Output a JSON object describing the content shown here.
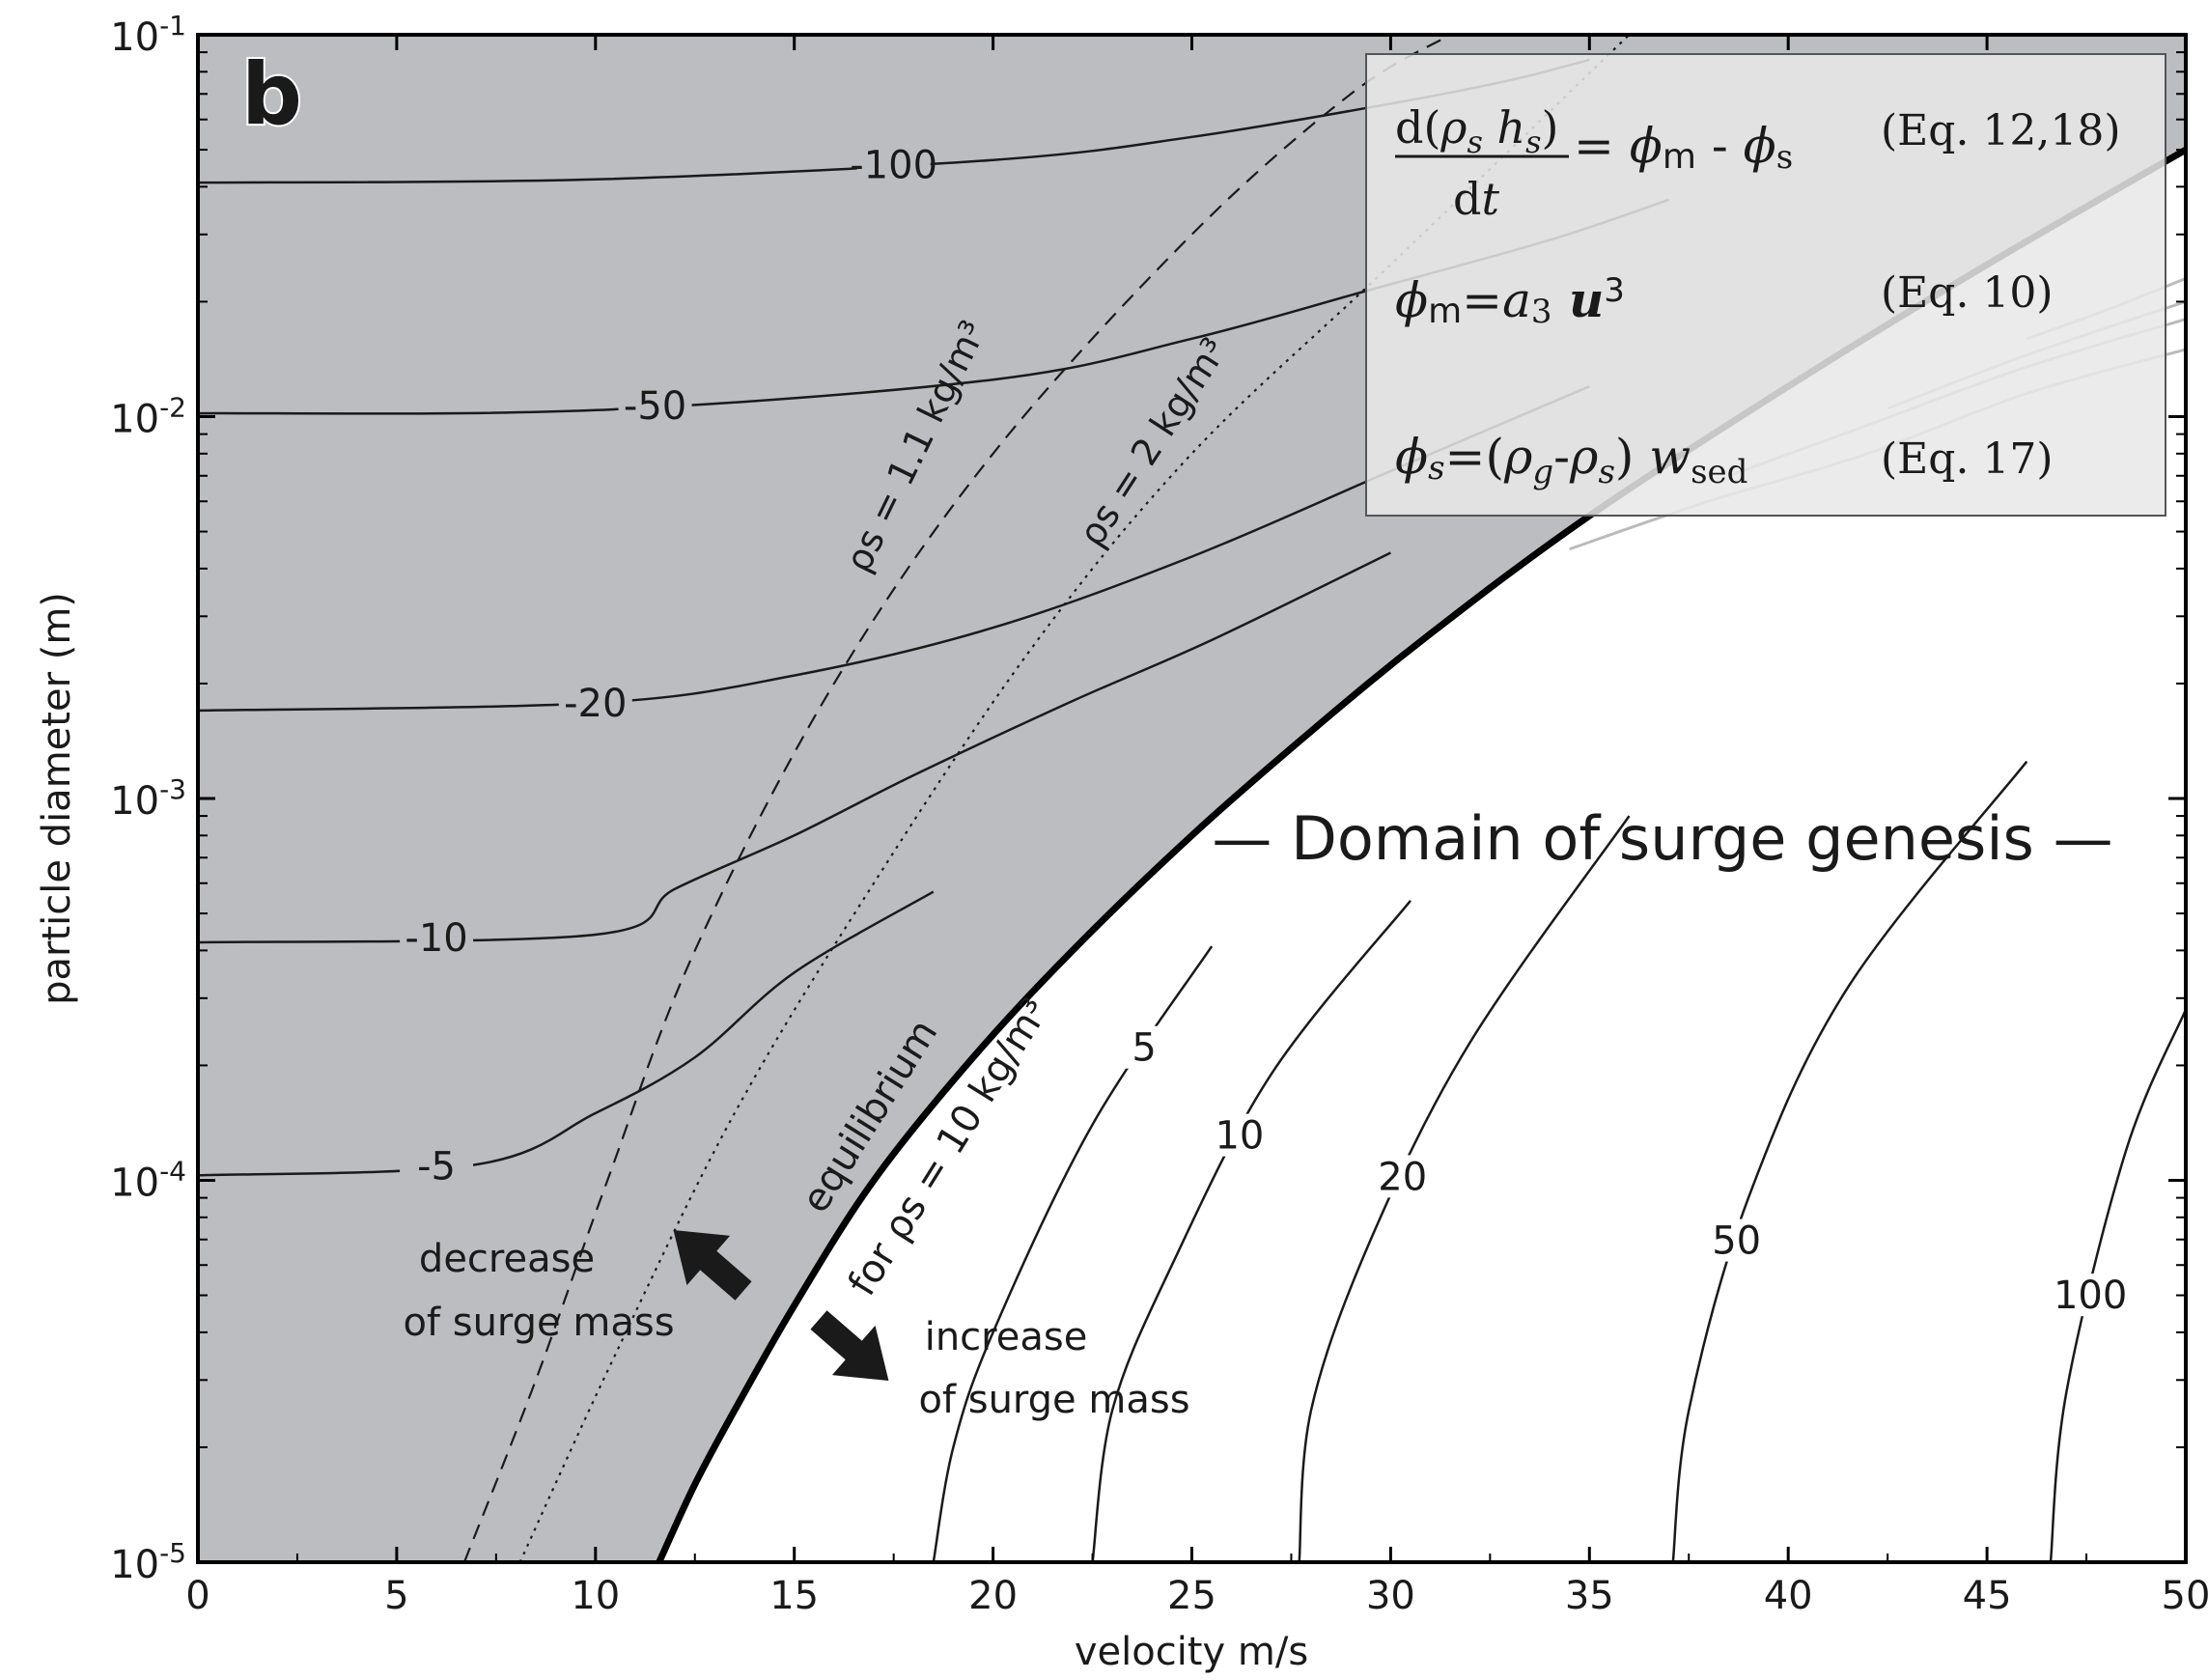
{
  "chart_data": {
    "type": "contour",
    "panel_label": "b",
    "xlabel": "velocity m/s",
    "ylabel": "particle diameter (m)",
    "x_scale": "linear",
    "y_scale": "log",
    "xlim": [
      0,
      50
    ],
    "ylim": [
      1e-05,
      0.1
    ],
    "x_ticks": [
      0,
      5,
      10,
      15,
      20,
      25,
      30,
      35,
      40,
      45,
      50
    ],
    "x_tick_labels": [
      "0",
      "5",
      "10",
      "15",
      "20",
      "25",
      "30",
      "35",
      "40",
      "45",
      "50"
    ],
    "y_ticks": [
      {
        "value": 1e-05,
        "base": "10",
        "exp": "-5"
      },
      {
        "value": 0.0001,
        "base": "10",
        "exp": "-4"
      },
      {
        "value": 0.001,
        "base": "10",
        "exp": "-3"
      },
      {
        "value": 0.01,
        "base": "10",
        "exp": "-2"
      },
      {
        "value": 0.1,
        "base": "10",
        "exp": "-1"
      }
    ],
    "colors": {
      "negative_region": "#bcbdc0",
      "legend_box": "#e8e8e8",
      "contour": "#1a1a1a",
      "light_contour": "#bbbbbb"
    },
    "equilibrium_curve": {
      "x": [
        11.6,
        12.5,
        13.5,
        15.0,
        17.0,
        19.5,
        22.0,
        25.0,
        28.0,
        31.0,
        35.0,
        40.0,
        45.0,
        50.0
      ],
      "y": [
        1e-05,
        1.6e-05,
        2.5e-05,
        4.7e-05,
        0.0001,
        0.00021,
        0.0004,
        0.0008,
        0.0015,
        0.0027,
        0.0055,
        0.012,
        0.025,
        0.05
      ]
    },
    "negative_contours": [
      {
        "level": "-100",
        "x": [
          0,
          10,
          20,
          25,
          30,
          33,
          35
        ],
        "y": [
          0.041,
          0.0418,
          0.047,
          0.054,
          0.066,
          0.076,
          0.086
        ]
      },
      {
        "level": "-50",
        "x": [
          0,
          10,
          20,
          25,
          29.5,
          34,
          37
        ],
        "y": [
          0.0102,
          0.0104,
          0.0125,
          0.016,
          0.0215,
          0.029,
          0.037
        ]
      },
      {
        "level": "-20",
        "x": [
          0,
          10,
          15,
          20,
          25,
          30,
          35
        ],
        "y": [
          0.0017,
          0.00178,
          0.0021,
          0.0028,
          0.0043,
          0.0072,
          0.012
        ]
      },
      {
        "level": "-10",
        "x": [
          0,
          10,
          12,
          15,
          18,
          22,
          25.5,
          30
        ],
        "y": [
          0.00042,
          0.00044,
          0.00058,
          0.0008,
          0.00115,
          0.0018,
          0.0026,
          0.0044
        ]
      },
      {
        "level": "-5",
        "x": [
          0,
          7,
          10,
          12.5,
          15,
          18.5
        ],
        "y": [
          0.000103,
          0.00011,
          0.00015,
          0.00021,
          0.00035,
          0.00057
        ]
      }
    ],
    "positive_contours": [
      {
        "level": "5",
        "x": [
          18.5,
          19,
          20,
          22.5,
          25.5
        ],
        "y": [
          1e-05,
          2e-05,
          4e-05,
          0.00014,
          0.00041
        ]
      },
      {
        "level": "10",
        "x": [
          22.5,
          23,
          24.5,
          27,
          30.5
        ],
        "y": [
          1e-05,
          2.5e-05,
          6e-05,
          0.00019,
          0.00054
        ]
      },
      {
        "level": "20",
        "x": [
          27.7,
          28,
          29.5,
          32,
          36
        ],
        "y": [
          1e-05,
          2.5e-05,
          7e-05,
          0.00023,
          0.0009
        ]
      },
      {
        "level": "50",
        "x": [
          37.1,
          37.5,
          39,
          41.5,
          46
        ],
        "y": [
          1e-05,
          2.5e-05,
          9e-05,
          0.00032,
          0.00125
        ]
      },
      {
        "level": "100",
        "x": [
          46.6,
          47,
          48.5,
          50
        ],
        "y": [
          1e-05,
          2.8e-05,
          0.00012,
          0.00028
        ]
      }
    ],
    "upper_positive_contours": [
      {
        "x": [
          34.5,
          38,
          42,
          46,
          50
        ],
        "y": [
          0.0045,
          0.006,
          0.008,
          0.0115,
          0.015
        ]
      },
      {
        "x": [
          38.5,
          42,
          46,
          50
        ],
        "y": [
          0.007,
          0.0095,
          0.0135,
          0.018
        ]
      },
      {
        "x": [
          42.5,
          46,
          50
        ],
        "y": [
          0.0105,
          0.0145,
          0.02
        ]
      },
      {
        "x": [
          46,
          48,
          50
        ],
        "y": [
          0.016,
          0.019,
          0.023
        ]
      }
    ],
    "density_curves": [
      {
        "label": "ρs = 1.1 kg/m³",
        "style": "dashed",
        "x": [
          6.7,
          8.5,
          10.3,
          12.5,
          16,
          20,
          25,
          29,
          31.5
        ],
        "y": [
          1e-05,
          3e-05,
          0.0001,
          0.0004,
          0.002,
          0.008,
          0.03,
          0.07,
          0.1
        ]
      },
      {
        "label": "ρs = 2 kg/m³",
        "style": "dotted",
        "x": [
          8.1,
          10.5,
          13.5,
          17,
          21,
          25,
          30,
          36
        ],
        "y": [
          1e-05,
          3.5e-05,
          0.00015,
          0.0006,
          0.0025,
          0.008,
          0.025,
          0.1
        ]
      }
    ],
    "annotations": {
      "equilibrium": "equilibrium",
      "equilibrium_for": "for ρs = 10 kg/m³",
      "decrease": [
        "decrease",
        "of surge mass"
      ],
      "increase": [
        "increase",
        "of surge mass"
      ],
      "domain": "— Domain of surge genesis —"
    },
    "equations": [
      {
        "lhs": "d(ρs hs) / dt",
        "rhs": "= ϕm - ϕs",
        "ref": "(Eq. 12,18)"
      },
      {
        "lhs": "ϕm=a3 u3",
        "ref": "(Eq. 10)"
      },
      {
        "lhs": "ϕs=(ρg-ρs) wsed",
        "ref": "(Eq. 17)"
      }
    ]
  }
}
